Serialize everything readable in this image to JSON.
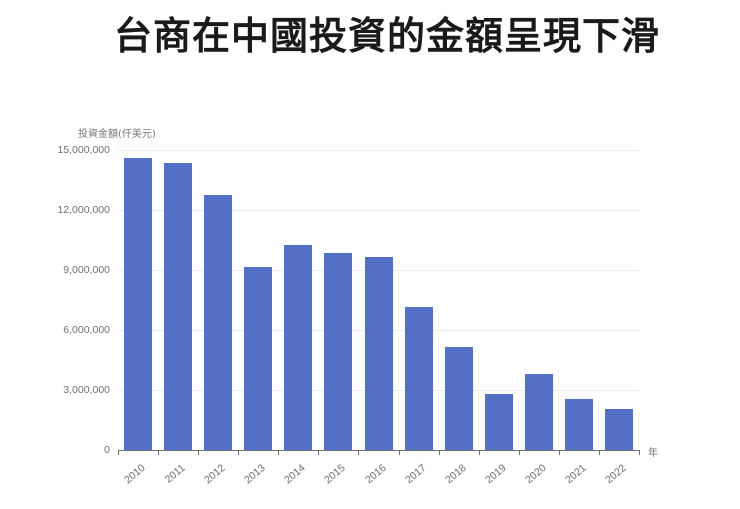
{
  "title": "台商在中國投資的金額呈現下滑",
  "chart_data": {
    "type": "bar",
    "title": "台商在中國投資的金額呈現下滑",
    "xlabel": "年",
    "ylabel": "投資金額(仟美元)",
    "categories": [
      "2010",
      "2011",
      "2012",
      "2013",
      "2014",
      "2015",
      "2016",
      "2017",
      "2018",
      "2019",
      "2020",
      "2021",
      "2022"
    ],
    "values": [
      14650000,
      14400000,
      12800000,
      9200000,
      10300000,
      9900000,
      9700000,
      7200000,
      5200000,
      2850000,
      3850000,
      2600000,
      2100000
    ],
    "ylim": [
      0,
      15000000
    ],
    "yticks": [
      0,
      3000000,
      6000000,
      9000000,
      12000000,
      15000000
    ],
    "ytick_labels": [
      "0",
      "3,000,000",
      "6,000,000",
      "9,000,000",
      "12,000,000",
      "15,000,000"
    ],
    "grid": true,
    "legend": null,
    "bar_color": "#5470c6"
  }
}
